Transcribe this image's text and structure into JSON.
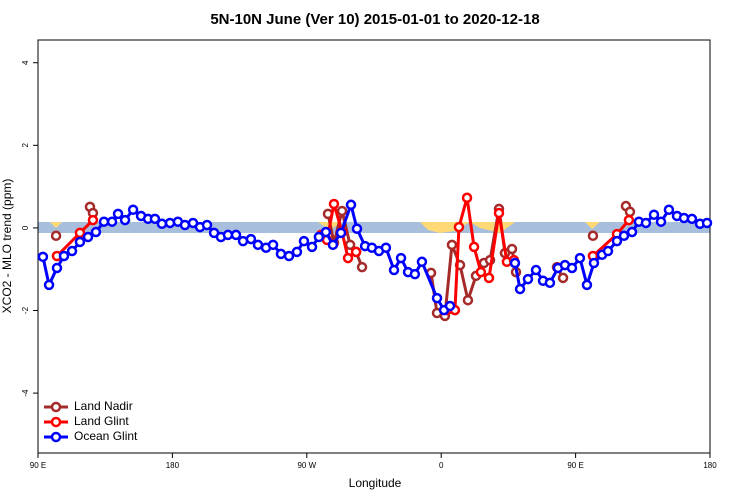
{
  "chart_data": {
    "type": "line",
    "title": "5N-10N June (Ver 10)   2015-01-01 to 2020-12-18",
    "xlabel": "Longitude",
    "ylabel": "XCO2 - MLO trend (ppm)",
    "xlim": [
      90,
      540
    ],
    "xticks": [
      {
        "value": 90,
        "label": "90 E"
      },
      180,
      {
        "value": 270,
        "label": "90 W"
      },
      {
        "value": 360,
        "label": "0"
      },
      {
        "value": 450,
        "label": "90 E"
      },
      {
        "value": 540,
        "label": "180"
      }
    ],
    "ylim": [
      -5.45,
      4.55
    ],
    "yticks": [
      -4,
      -2,
      0,
      2,
      4
    ],
    "legend": "bottomleft",
    "series": [
      {
        "name": "Land Nadir",
        "color": "#a52a2a",
        "x": [
          102.1,
          null,
          124.8,
          126.8,
          null,
          284.2,
          288.2,
          293.6,
          299.0,
          303.0,
          307.0,
          null,
          353.2,
          357.2,
          362.5,
          367.2,
          372.6,
          377.9,
          383.3,
          388.6,
          392.7,
          398.7,
          402.7,
          407.4,
          410.1,
          null,
          437.5,
          441.6,
          null,
          461.6,
          null,
          483.7,
          486.4
        ],
        "values": [
          -0.19,
          null,
          0.51,
          0.36,
          null,
          0.34,
          -0.36,
          0.41,
          -0.41,
          -0.58,
          -0.95,
          null,
          -1.09,
          -2.06,
          -2.13,
          -0.41,
          -0.9,
          -1.75,
          -1.16,
          -0.85,
          -0.78,
          0.46,
          -0.61,
          -0.51,
          -1.07,
          null,
          -0.95,
          -1.21,
          null,
          -0.19,
          null,
          0.53,
          0.39
        ]
      },
      {
        "name": "Land Glint",
        "color": "#ff0000",
        "x": [
          102.7,
          118.1,
          126.8,
          null,
          279.5,
          283.5,
          288.2,
          293.6,
          297.6,
          303.0,
          null,
          363.9,
          369.2,
          371.9,
          377.3,
          382.0,
          386.6,
          392.0,
          398.7,
          404.0,
          408.7,
          null,
          461.6,
          477.7,
          485.7
        ],
        "values": [
          -0.68,
          -0.12,
          0.19,
          null,
          -0.17,
          -0.29,
          0.58,
          -0.1,
          -0.73,
          -0.58,
          null,
          -1.99,
          -1.99,
          0.02,
          0.73,
          -0.46,
          -1.07,
          -1.21,
          0.36,
          -0.82,
          -0.78,
          null,
          -0.68,
          -0.15,
          0.19
        ]
      },
      {
        "name": "Ocean Glint",
        "color": "#0000ff",
        "x": [
          93.3,
          97.4,
          102.7,
          107.4,
          112.8,
          118.1,
          123.5,
          128.8,
          134.2,
          139.6,
          143.6,
          148.3,
          153.7,
          159.0,
          163.7,
          168.3,
          173.0,
          178.4,
          183.7,
          188.4,
          193.8,
          198.5,
          203.2,
          207.9,
          212.5,
          217.2,
          222.6,
          227.3,
          232.6,
          237.3,
          242.7,
          247.4,
          252.7,
          258.1,
          263.4,
          268.1,
          273.5,
          278.1,
          282.8,
          287.5,
          292.9,
          299.6,
          303.6,
          309.0,
          313.6,
          318.3,
          323.0,
          328.4,
          333.1,
          337.8,
          342.4,
          347.1,
          357.2,
          361.9,
          365.9,
          null,
          409.4,
          412.8,
          418.1,
          423.5,
          428.2,
          432.8,
          438.2,
          442.9,
          447.6,
          452.9,
          457.6,
          462.3,
          467.7,
          471.7,
          477.7,
          482.4,
          487.8,
          492.4,
          497.1,
          502.5,
          507.2,
          512.5,
          517.9,
          522.6,
          527.9,
          533.3,
          538.0
        ],
        "values": [
          -0.7,
          -1.38,
          -0.97,
          -0.68,
          -0.56,
          -0.34,
          -0.22,
          -0.1,
          0.15,
          0.15,
          0.34,
          0.19,
          0.44,
          0.29,
          0.22,
          0.22,
          0.1,
          0.12,
          0.15,
          0.07,
          0.12,
          0.02,
          0.07,
          -0.12,
          -0.22,
          -0.17,
          -0.17,
          -0.32,
          -0.27,
          -0.41,
          -0.48,
          -0.41,
          -0.63,
          -0.68,
          -0.58,
          -0.32,
          -0.46,
          -0.22,
          -0.1,
          -0.41,
          -0.12,
          0.56,
          -0.02,
          -0.44,
          -0.48,
          -0.56,
          -0.48,
          -1.02,
          -0.73,
          -1.07,
          -1.12,
          -0.82,
          -1.7,
          -1.99,
          -1.89,
          null,
          -0.85,
          -1.48,
          -1.24,
          -1.02,
          -1.28,
          -1.33,
          -0.97,
          -0.9,
          -0.97,
          -0.73,
          -1.38,
          -0.85,
          -0.65,
          -0.56,
          -0.32,
          -0.19,
          -0.1,
          0.15,
          0.12,
          0.32,
          0.15,
          0.44,
          0.29,
          0.24,
          0.22,
          0.1,
          0.12
        ]
      }
    ]
  }
}
